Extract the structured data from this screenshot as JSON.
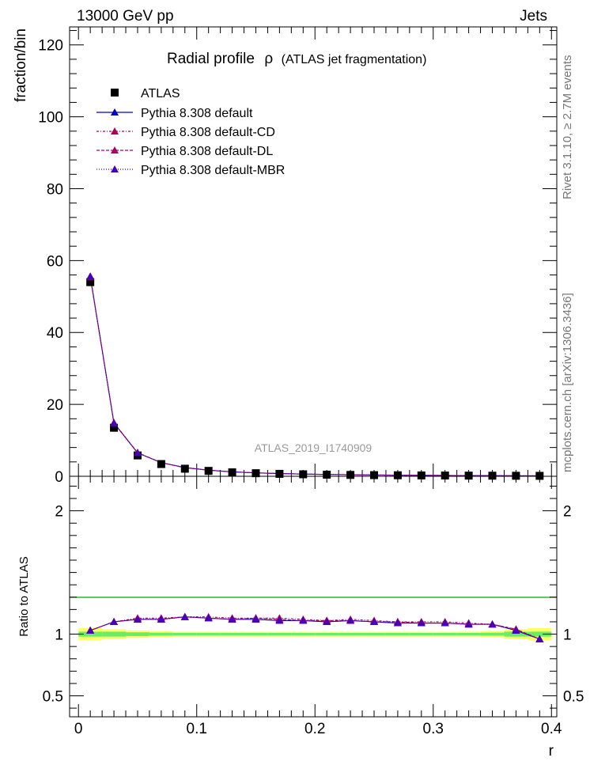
{
  "header": {
    "left": "13000 GeV pp",
    "right": "Jets"
  },
  "side_text": {
    "upper": "Rivet 3.1.10, ≥ 2.7M events",
    "lower": "mcplots.cern.ch [arXiv:1306.3436]"
  },
  "chart_data": [
    {
      "type": "scatter",
      "title_prefix": "Radial profile",
      "title_symbol": "ρ",
      "title_suffix": "(ATLAS jet fragmentation)",
      "watermark": "ATLAS_2019_I1740909",
      "ylabel": "fraction/bin",
      "xlim": [
        -0.0075,
        0.4045
      ],
      "ylim": [
        0,
        125
      ],
      "yticks": [
        0,
        20,
        40,
        60,
        80,
        100,
        120
      ],
      "ytick_labels": [
        "0",
        "20",
        "40",
        "60",
        "80",
        "100",
        "120"
      ],
      "x": [
        0.01,
        0.03,
        0.05,
        0.07,
        0.09,
        0.11,
        0.13,
        0.15,
        0.17,
        0.19,
        0.21,
        0.23,
        0.25,
        0.27,
        0.29,
        0.31,
        0.33,
        0.35,
        0.37,
        0.39
      ],
      "legend": [
        "ATLAS",
        "Pythia 8.308 default",
        "Pythia 8.308 default-CD",
        "Pythia 8.308 default-DL",
        "Pythia 8.308 default-MBR"
      ],
      "series": [
        {
          "name": "ATLAS",
          "color": "#000000",
          "values": [
            54.0,
            13.5,
            5.8,
            3.4,
            2.1,
            1.5,
            1.1,
            0.85,
            0.68,
            0.55,
            0.45,
            0.38,
            0.32,
            0.28,
            0.24,
            0.21,
            0.18,
            0.16,
            0.14,
            0.12
          ]
        },
        {
          "name": "Pythia 8.308 default",
          "color": "#0000cc",
          "values": [
            55.6,
            14.8,
            6.5,
            3.8,
            2.4,
            1.7,
            1.22,
            0.95,
            0.76,
            0.61,
            0.5,
            0.42,
            0.35,
            0.31,
            0.26,
            0.23,
            0.19,
            0.17,
            0.14,
            0.115
          ]
        },
        {
          "name": "Pythia 8.308 default-CD",
          "color": "#aa0055",
          "values": [
            55.4,
            14.9,
            6.6,
            3.8,
            2.4,
            1.7,
            1.22,
            0.96,
            0.77,
            0.62,
            0.5,
            0.43,
            0.36,
            0.31,
            0.26,
            0.23,
            0.19,
            0.17,
            0.145,
            0.115
          ]
        },
        {
          "name": "Pythia 8.308 default-DL",
          "color": "#aa0066",
          "values": [
            55.5,
            14.8,
            6.5,
            3.8,
            2.4,
            1.7,
            1.22,
            0.95,
            0.76,
            0.61,
            0.5,
            0.42,
            0.35,
            0.31,
            0.26,
            0.23,
            0.19,
            0.17,
            0.145,
            0.115
          ]
        },
        {
          "name": "Pythia 8.308 default-MBR",
          "color": "#4400bb",
          "values": [
            55.6,
            14.8,
            6.5,
            3.8,
            2.4,
            1.7,
            1.22,
            0.95,
            0.76,
            0.61,
            0.5,
            0.42,
            0.35,
            0.31,
            0.26,
            0.23,
            0.19,
            0.17,
            0.14,
            0.115
          ]
        }
      ]
    },
    {
      "type": "line",
      "ylabel": "Ratio to ATLAS",
      "xlabel": "r",
      "xlim": [
        -0.0075,
        0.4045
      ],
      "ylim": [
        0.33,
        2.28
      ],
      "yticks": [
        0.5,
        1,
        2
      ],
      "ytick_labels": [
        "0.5",
        "1",
        "2"
      ],
      "xticks": [
        0,
        0.1,
        0.2,
        0.3,
        0.4
      ],
      "xtick_labels": [
        "0",
        "0.1",
        "0.2",
        "0.3",
        "0.4"
      ],
      "x": [
        0.01,
        0.03,
        0.05,
        0.07,
        0.09,
        0.11,
        0.13,
        0.15,
        0.17,
        0.19,
        0.21,
        0.23,
        0.25,
        0.27,
        0.29,
        0.31,
        0.33,
        0.35,
        0.37,
        0.39
      ],
      "band_color_inner": "#66ee66",
      "band_color_outer": "#ffff66",
      "band_inner": [
        0.02,
        0.02,
        0.015,
        0.012,
        0.01,
        0.01,
        0.01,
        0.01,
        0.01,
        0.01,
        0.01,
        0.01,
        0.01,
        0.01,
        0.01,
        0.01,
        0.01,
        0.012,
        0.02,
        0.02
      ],
      "band_outer": [
        0.05,
        0.04,
        0.03,
        0.025,
        0.02,
        0.02,
        0.02,
        0.02,
        0.02,
        0.02,
        0.02,
        0.02,
        0.02,
        0.02,
        0.02,
        0.02,
        0.02,
        0.025,
        0.04,
        0.05
      ],
      "series": [
        {
          "name": "Pythia 8.308 default",
          "color": "#0000cc",
          "values": [
            1.03,
            1.1,
            1.12,
            1.12,
            1.14,
            1.13,
            1.12,
            1.12,
            1.11,
            1.11,
            1.1,
            1.11,
            1.1,
            1.09,
            1.09,
            1.09,
            1.08,
            1.08,
            1.03,
            0.96
          ]
        },
        {
          "name": "Pythia 8.308 default-CD",
          "color": "#aa0055",
          "values": [
            1.03,
            1.1,
            1.13,
            1.13,
            1.14,
            1.14,
            1.13,
            1.13,
            1.13,
            1.12,
            1.11,
            1.12,
            1.11,
            1.1,
            1.1,
            1.1,
            1.09,
            1.08,
            1.04,
            0.96
          ]
        },
        {
          "name": "Pythia 8.308 default-DL",
          "color": "#aa0066",
          "values": [
            1.03,
            1.1,
            1.12,
            1.12,
            1.14,
            1.13,
            1.12,
            1.13,
            1.12,
            1.11,
            1.11,
            1.11,
            1.1,
            1.1,
            1.09,
            1.09,
            1.08,
            1.08,
            1.04,
            0.96
          ]
        },
        {
          "name": "Pythia 8.308 default-MBR",
          "color": "#4400bb",
          "values": [
            1.03,
            1.1,
            1.12,
            1.12,
            1.14,
            1.13,
            1.12,
            1.12,
            1.11,
            1.11,
            1.1,
            1.11,
            1.1,
            1.09,
            1.09,
            1.09,
            1.08,
            1.08,
            1.03,
            0.96
          ]
        }
      ]
    }
  ]
}
